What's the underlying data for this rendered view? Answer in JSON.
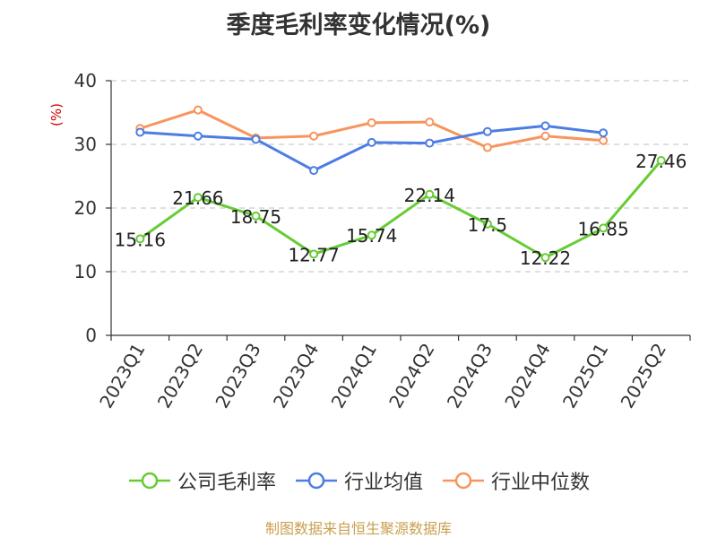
{
  "title": "季度毛利率变化情况(%)",
  "source_text": "制图数据来自恒生聚源数据库",
  "chart_data": {
    "type": "line",
    "title": "季度毛利率变化情况(%)",
    "ylabel": "(%)",
    "xlabel": "",
    "ylim": [
      0,
      40
    ],
    "yticks": [
      0,
      10,
      20,
      30,
      40
    ],
    "grid": true,
    "legend_position": "bottom",
    "categories": [
      "2023Q1",
      "2023Q2",
      "2023Q3",
      "2023Q4",
      "2024Q1",
      "2024Q2",
      "2024Q3",
      "2024Q4",
      "2025Q1",
      "2025Q2"
    ],
    "series": [
      {
        "name": "公司毛利率",
        "color": "#66cc33",
        "show_labels": true,
        "values": [
          15.16,
          21.66,
          18.75,
          12.77,
          15.74,
          22.14,
          17.5,
          12.22,
          16.85,
          27.46
        ],
        "labels": [
          "15.16",
          "21.66",
          "18.75",
          "12.77",
          "15.74",
          "22.14",
          "17.5",
          "12.22",
          "16.85",
          "27.46"
        ]
      },
      {
        "name": "行业均值",
        "color": "#4c7de3",
        "show_labels": false,
        "values": [
          31.9,
          31.3,
          30.8,
          25.9,
          30.3,
          30.2,
          32.0,
          32.9,
          31.8,
          null
        ]
      },
      {
        "name": "行业中位数",
        "color": "#f7955d",
        "show_labels": false,
        "values": [
          32.5,
          35.4,
          31.0,
          31.3,
          33.4,
          33.5,
          29.5,
          31.3,
          30.6,
          null
        ]
      }
    ]
  }
}
